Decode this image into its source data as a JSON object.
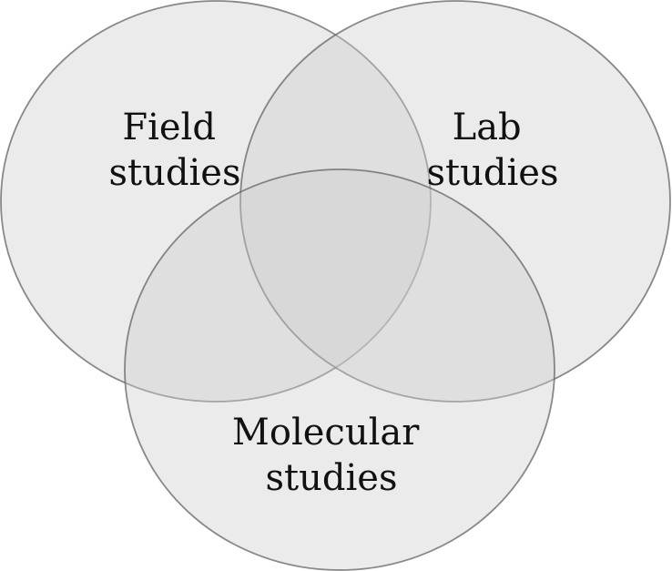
{
  "diagram": {
    "type": "venn",
    "sets": [
      {
        "id": "field",
        "label_lines": [
          "Field",
          "studies"
        ]
      },
      {
        "id": "lab",
        "label_lines": [
          "Lab",
          "studies"
        ]
      },
      {
        "id": "molecular",
        "label_lines": [
          "Molecular",
          "studies"
        ]
      }
    ]
  }
}
